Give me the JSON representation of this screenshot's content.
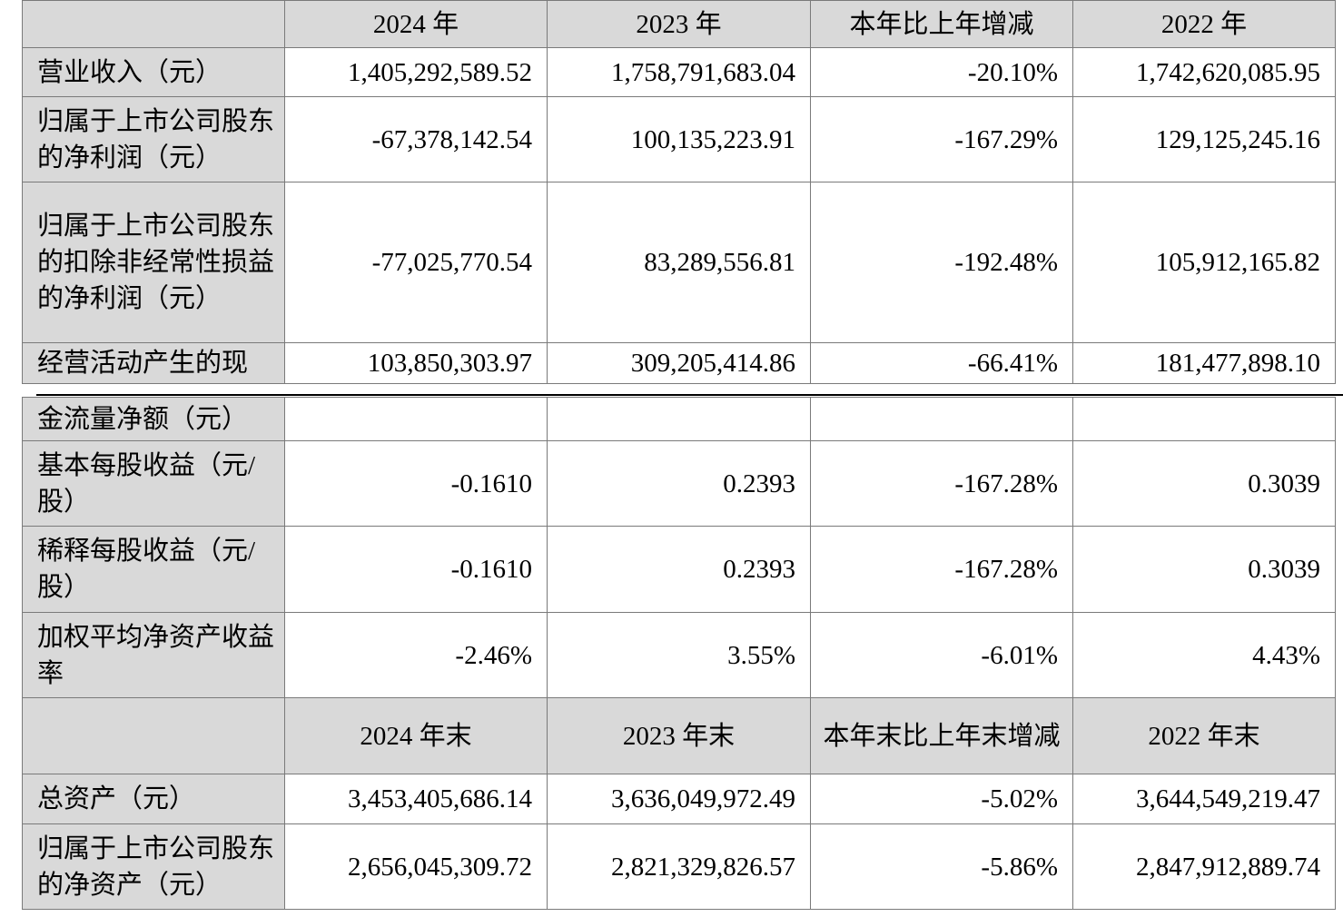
{
  "part1": {
    "header": [
      "",
      "2024 年",
      "2023 年",
      "本年比上年增减",
      "2022 年"
    ],
    "rows": [
      {
        "label": "营业收入（元）",
        "values": [
          "1,405,292,589.52",
          "1,758,791,683.04",
          "-20.10%",
          "1,742,620,085.95"
        ]
      },
      {
        "label": "归属于上市公司股东的净利润（元）",
        "values": [
          "-67,378,142.54",
          "100,135,223.91",
          "-167.29%",
          "129,125,245.16"
        ]
      },
      {
        "label": "归属于上市公司股东的扣除非经常性损益的净利润（元）",
        "values": [
          "-77,025,770.54",
          "83,289,556.81",
          "-192.48%",
          "105,912,165.82"
        ]
      },
      {
        "label": "经营活动产生的现",
        "values": [
          "103,850,303.97",
          "309,205,414.86",
          "-66.41%",
          "181,477,898.10"
        ]
      }
    ]
  },
  "part2": {
    "rows": [
      {
        "label": "金流量净额（元）",
        "values": [
          "",
          "",
          "",
          ""
        ]
      },
      {
        "label": "基本每股收益（元/股）",
        "values": [
          "-0.1610",
          "0.2393",
          "-167.28%",
          "0.3039"
        ]
      },
      {
        "label": "稀释每股收益（元/股）",
        "values": [
          "-0.1610",
          "0.2393",
          "-167.28%",
          "0.3039"
        ]
      },
      {
        "label": "加权平均净资产收益率",
        "values": [
          "-2.46%",
          "3.55%",
          "-6.01%",
          "4.43%"
        ]
      }
    ],
    "header2": [
      "",
      "2024 年末",
      "2023 年末",
      "本年末比上年末增减",
      "2022 年末"
    ],
    "rows2": [
      {
        "label": "总资产（元）",
        "values": [
          "3,453,405,686.14",
          "3,636,049,972.49",
          "-5.02%",
          "3,644,549,219.47"
        ]
      },
      {
        "label": "归属于上市公司股东的净资产（元）",
        "values": [
          "2,656,045,309.72",
          "2,821,329,826.57",
          "-5.86%",
          "2,847,912,889.74"
        ]
      }
    ]
  }
}
